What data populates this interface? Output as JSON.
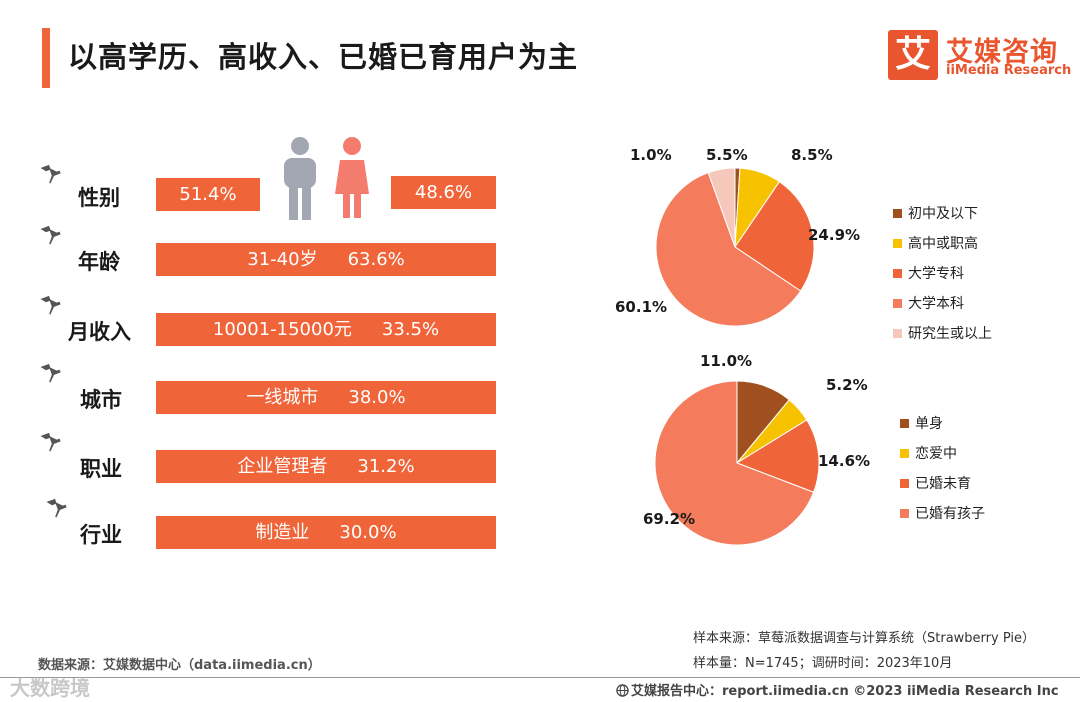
{
  "title": "以高学历、高收入、已婚已育用户为主",
  "logo": {
    "icon_char": "艾",
    "cn": "艾媒咨询",
    "en": "iiMedia Research"
  },
  "profile": {
    "gender": {
      "label": "性别",
      "male": "51.4%",
      "female": "48.6%",
      "male_icon": "male-person-icon",
      "female_icon": "female-person-icon"
    },
    "rows": [
      {
        "label": "年龄",
        "category": "31-40岁",
        "value": "63.6%"
      },
      {
        "label": "月收入",
        "category": "10001-15000元",
        "value": "33.5%"
      },
      {
        "label": "城市",
        "category": "一线城市",
        "value": "38.0%"
      },
      {
        "label": "职业",
        "category": "企业管理者",
        "value": "31.2%"
      },
      {
        "label": "行业",
        "category": "制造业",
        "value": "30.0%"
      }
    ],
    "pin_icon": "pushpin-icon",
    "bar_color": "#f0643a"
  },
  "chart_data": [
    {
      "type": "pie",
      "categories": [
        "初中及以下",
        "高中或职高",
        "大学专科",
        "大学本科",
        "研究生或以上"
      ],
      "values": [
        1.0,
        8.5,
        24.9,
        60.1,
        5.5
      ],
      "labels": [
        "1.0%",
        "8.5%",
        "24.9%",
        "60.1%",
        "5.5%"
      ],
      "colors": [
        "#a0501e",
        "#f7c300",
        "#f0643a",
        "#f47c5c",
        "#f6c8bb"
      ],
      "legend_position": "right"
    },
    {
      "type": "pie",
      "categories": [
        "单身",
        "恋爱中",
        "已婚未育",
        "已婚有孩子"
      ],
      "values": [
        11.0,
        5.2,
        14.6,
        69.2
      ],
      "labels": [
        "11.0%",
        "5.2%",
        "14.6%",
        "69.2%"
      ],
      "colors": [
        "#a0501e",
        "#f7c300",
        "#f0643a",
        "#f47c5c"
      ],
      "legend_position": "right"
    }
  ],
  "footer": {
    "source_left": "数据来源：艾媒数据中心（data.iimedia.cn）",
    "sample_source": "样本来源：草莓派数据调查与计算系统（Strawberry Pie）",
    "sample_size": "样本量：N=1745；调研时间：2023年10月",
    "report_center": "艾媒报告中心：report.iimedia.cn  ©2023  iiMedia Research  Inc",
    "watermark": "大数跨境"
  }
}
